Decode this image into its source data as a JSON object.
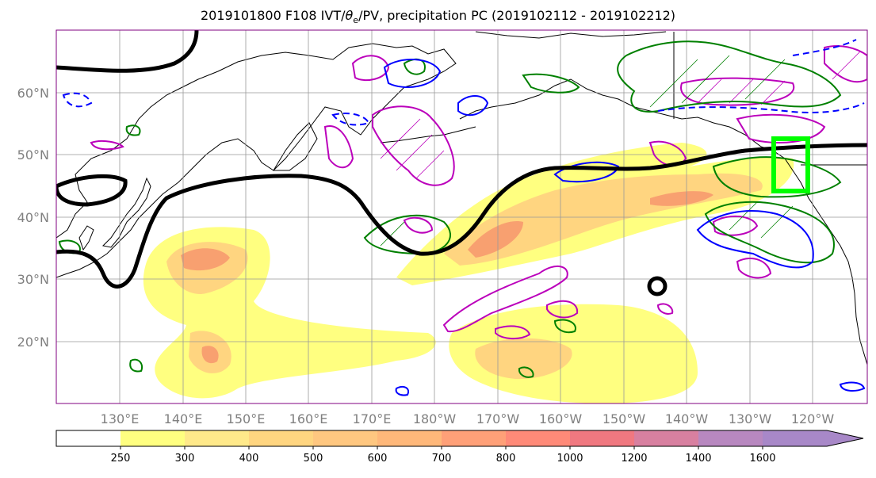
{
  "title": {
    "prefix": "2019101800 F108 IVT/",
    "theta": "θ",
    "theta_sub": "e",
    "suffix": "/PV, precipitation PC (2019102112 - 2019102212)"
  },
  "map": {
    "lon_ticks": [
      "130°E",
      "140°E",
      "150°E",
      "160°E",
      "170°E",
      "180°W",
      "170°W",
      "160°W",
      "150°W",
      "140°W",
      "130°W",
      "120°W"
    ],
    "lat_ticks": [
      "60°N",
      "50°N",
      "40°N",
      "30°N",
      "20°N"
    ],
    "grid": true,
    "tick_label_color": "#808080",
    "contour_colors": {
      "ivt_fill_low": "#ffff80",
      "ivt_fill_mid": "#ffd080",
      "ivt_fill_high": "#f8a070",
      "pv_contour": "#000000",
      "theta_positive": "#008000",
      "theta_negative": "#0000ff",
      "precip_pc": "#bb00bb",
      "highlight_box": "#00ff00"
    }
  },
  "colorbar": {
    "ticks": [
      "250",
      "300",
      "400",
      "500",
      "600",
      "700",
      "800",
      "1000",
      "1200",
      "1400",
      "1600"
    ],
    "colors": [
      "#ffffff",
      "#ffff80",
      "#ffe98a",
      "#ffd580",
      "#ffc780",
      "#ffb87a",
      "#ffa078",
      "#ff8a78",
      "#f07880",
      "#d880a0",
      "#b888c0",
      "#a888c8"
    ],
    "extend": "max"
  }
}
